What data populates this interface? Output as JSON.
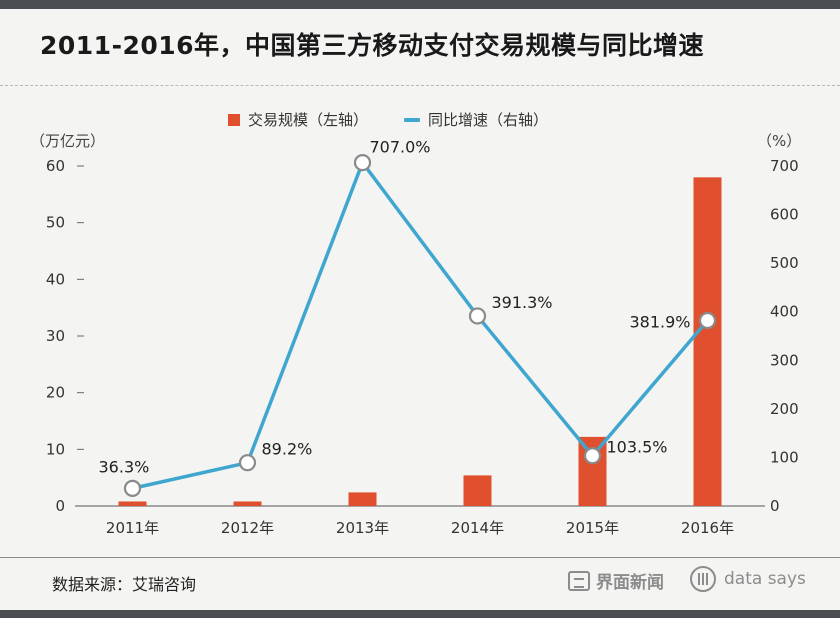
{
  "title": "2011-2016年，中国第三方移动支付交易规模与同比增速",
  "legend": {
    "bar_label": "交易规模（左轴）",
    "line_label": "同比增速（右轴）"
  },
  "units": {
    "left": "（万亿元）",
    "right": "（%）"
  },
  "source": "数据来源：艾瑞咨询",
  "brands": {
    "jiemian": "界面新闻",
    "datasays": "data says"
  },
  "colors": {
    "bar": "#e0502f",
    "line": "#3fa6d0",
    "marker_fill": "#ffffff",
    "marker_stroke": "#8a8a8a"
  },
  "chart_data": {
    "type": "bar+line",
    "categories": [
      "2011年",
      "2012年",
      "2013年",
      "2014年",
      "2015年",
      "2016年"
    ],
    "series": [
      {
        "name": "交易规模（左轴）",
        "type": "bar",
        "axis": "left",
        "values": [
          0.8,
          0.8,
          2.4,
          5.4,
          12.2,
          58.0
        ]
      },
      {
        "name": "同比增速（右轴）",
        "type": "line",
        "axis": "right",
        "values": [
          36.3,
          89.2,
          707.0,
          391.3,
          103.5,
          381.9
        ],
        "labels": [
          "36.3%",
          "89.2%",
          "707.0%",
          "391.3%",
          "103.5%",
          "381.9%"
        ]
      }
    ],
    "y_left": {
      "label": "（万亿元）",
      "lim": [
        0,
        60
      ],
      "ticks": [
        0,
        10,
        20,
        30,
        40,
        50,
        60
      ]
    },
    "y_right": {
      "label": "（%）",
      "lim": [
        0,
        700
      ],
      "ticks": [
        0,
        100,
        200,
        300,
        400,
        500,
        600,
        700
      ]
    }
  }
}
